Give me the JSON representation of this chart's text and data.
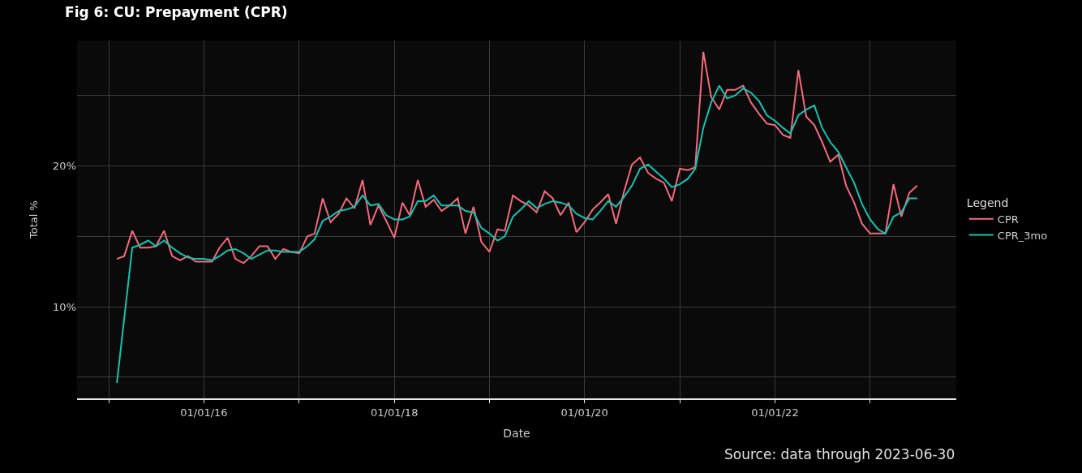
{
  "chart_data": {
    "type": "line",
    "title": "Fig 6: CU: Prepayment (CPR)",
    "xlabel": "Date",
    "ylabel": "Total %",
    "legend_title": "Legend",
    "x": [
      "2015-02",
      "2015-03",
      "2015-04",
      "2015-05",
      "2015-06",
      "2015-07",
      "2015-08",
      "2015-09",
      "2015-10",
      "2015-11",
      "2015-12",
      "2016-01",
      "2016-02",
      "2016-03",
      "2016-04",
      "2016-05",
      "2016-06",
      "2016-07",
      "2016-08",
      "2016-09",
      "2016-10",
      "2016-11",
      "2016-12",
      "2017-01",
      "2017-02",
      "2017-03",
      "2017-04",
      "2017-05",
      "2017-06",
      "2017-07",
      "2017-08",
      "2017-09",
      "2017-10",
      "2017-11",
      "2017-12",
      "2018-01",
      "2018-02",
      "2018-03",
      "2018-04",
      "2018-05",
      "2018-06",
      "2018-07",
      "2018-08",
      "2018-09",
      "2018-10",
      "2018-11",
      "2018-12",
      "2019-01",
      "2019-02",
      "2019-03",
      "2019-04",
      "2019-05",
      "2019-06",
      "2019-07",
      "2019-08",
      "2019-09",
      "2019-10",
      "2019-11",
      "2019-12",
      "2020-01",
      "2020-02",
      "2020-03",
      "2020-04",
      "2020-05",
      "2020-06",
      "2020-07",
      "2020-08",
      "2020-09",
      "2020-10",
      "2020-11",
      "2020-12",
      "2021-01",
      "2021-02",
      "2021-03",
      "2021-04",
      "2021-05",
      "2021-06",
      "2021-07",
      "2021-08",
      "2021-09",
      "2021-10",
      "2021-11",
      "2021-12",
      "2022-01",
      "2022-02",
      "2022-03",
      "2022-04",
      "2022-05",
      "2022-06",
      "2022-07",
      "2022-08",
      "2022-09",
      "2022-10",
      "2022-11",
      "2022-12",
      "2023-01",
      "2023-02",
      "2023-03",
      "2023-04",
      "2023-05",
      "2023-06",
      "2023-07"
    ],
    "series": [
      {
        "name": "CPR",
        "color": "#f4697e",
        "values": [
          13.4,
          13.6,
          15.4,
          14.2,
          14.2,
          14.3,
          15.4,
          13.6,
          13.3,
          13.6,
          13.2,
          13.2,
          13.2,
          14.2,
          14.9,
          13.4,
          13.1,
          13.6,
          14.3,
          14.3,
          13.4,
          14.1,
          13.9,
          13.8,
          15.0,
          15.2,
          17.7,
          16.0,
          16.6,
          17.7,
          17.0,
          19.0,
          15.8,
          17.2,
          16.1,
          14.9,
          17.4,
          16.5,
          19.0,
          17.1,
          17.6,
          16.8,
          17.2,
          17.7,
          15.2,
          17.1,
          14.6,
          13.9,
          15.5,
          15.4,
          17.9,
          17.5,
          17.2,
          16.7,
          18.2,
          17.7,
          16.5,
          17.4,
          15.3,
          16.0,
          16.9,
          17.4,
          18.0,
          15.9,
          18.2,
          20.1,
          20.6,
          19.5,
          19.1,
          18.8,
          17.5,
          19.8,
          19.7,
          19.9,
          28.1,
          24.9,
          24.0,
          25.4,
          25.4,
          25.7,
          24.5,
          23.7,
          23.0,
          22.9,
          22.2,
          22.0,
          26.8,
          23.5,
          22.9,
          21.7,
          20.3,
          20.8,
          18.6,
          17.4,
          15.9,
          15.2,
          15.2,
          15.2,
          18.7,
          16.4,
          18.1,
          18.6
        ]
      },
      {
        "name": "CPR_3mo",
        "color": "#12c5b0",
        "values": [
          4.6,
          null,
          14.2,
          14.4,
          14.7,
          14.3,
          14.7,
          14.2,
          13.8,
          13.5,
          13.4,
          13.4,
          13.3,
          13.6,
          14.0,
          14.1,
          13.8,
          13.4,
          13.7,
          14.0,
          14.0,
          13.9,
          13.9,
          13.9,
          14.3,
          14.8,
          16.1,
          16.4,
          16.8,
          16.9,
          17.1,
          17.9,
          17.2,
          17.3,
          16.5,
          16.2,
          16.2,
          16.4,
          17.5,
          17.5,
          17.9,
          17.2,
          17.2,
          17.2,
          16.8,
          16.7,
          15.6,
          15.2,
          14.7,
          15.0,
          16.4,
          16.9,
          17.5,
          17.0,
          17.3,
          17.5,
          17.4,
          17.2,
          16.6,
          16.3,
          16.2,
          16.8,
          17.5,
          17.1,
          17.8,
          18.6,
          19.8,
          20.1,
          19.6,
          19.1,
          18.5,
          18.7,
          19.1,
          19.8,
          22.7,
          24.5,
          25.7,
          24.8,
          25.0,
          25.5,
          25.2,
          24.6,
          23.6,
          23.2,
          22.7,
          22.3,
          23.6,
          24.0,
          24.3,
          22.7,
          21.7,
          21.0,
          19.9,
          18.8,
          17.3,
          16.2,
          15.5,
          15.2,
          16.4,
          16.7,
          17.7,
          17.7
        ]
      }
    ],
    "xlim": [
      "2014-09-01",
      "2023-11-28"
    ],
    "xticks": [
      {
        "value": "2015-01-01",
        "label": null
      },
      {
        "value": "2016-01-01",
        "label": "01/01/16"
      },
      {
        "value": "2017-01-01",
        "label": null
      },
      {
        "value": "2018-01-01",
        "label": "01/01/18"
      },
      {
        "value": "2019-01-01",
        "label": null
      },
      {
        "value": "2020-01-01",
        "label": "01/01/20"
      },
      {
        "value": "2021-01-01",
        "label": null
      },
      {
        "value": "2022-01-01",
        "label": "01/01/22"
      },
      {
        "value": "2023-01-01",
        "label": null
      }
    ],
    "ylim": [
      3.5,
      28.9
    ],
    "yticks": [
      {
        "value": 5,
        "label": null
      },
      {
        "value": 10,
        "label": "10%"
      },
      {
        "value": 15,
        "label": null
      },
      {
        "value": 20,
        "label": "20%"
      },
      {
        "value": 25,
        "label": null
      }
    ],
    "grid": true,
    "legend": "right",
    "marker": "none",
    "line_style": "solid",
    "annotations": [
      "Source: data through 2023-06-30"
    ]
  }
}
